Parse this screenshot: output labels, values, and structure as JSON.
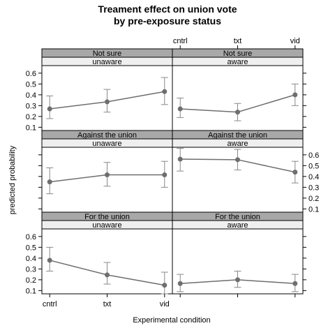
{
  "chart_data": {
    "type": "line",
    "title_line1": "Treament effect on union vote",
    "title_line2": "by pre-exposure status",
    "xlabel": "Experimental condition",
    "ylabel": "predicted probability",
    "categories": [
      "cntrl",
      "txt",
      "vid"
    ],
    "ylim": [
      0.07,
      0.67
    ],
    "yticks": [
      "0.1",
      "0.2",
      "0.3",
      "0.4",
      "0.5",
      "0.6"
    ],
    "grid": false,
    "colors": {
      "line": "#6e6e6e",
      "errorbar": "#888888",
      "strip_dark": "#a8a8a8",
      "strip_light": "#efefef"
    },
    "panels": [
      {
        "vote": "Not sure",
        "status": "unaware",
        "values": [
          0.27,
          0.335,
          0.43
        ],
        "lower": [
          0.18,
          0.24,
          0.31
        ],
        "upper": [
          0.39,
          0.45,
          0.56
        ]
      },
      {
        "vote": "Not sure",
        "status": "aware",
        "values": [
          0.27,
          0.24,
          0.4
        ],
        "lower": [
          0.19,
          0.16,
          0.3
        ],
        "upper": [
          0.37,
          0.32,
          0.5
        ]
      },
      {
        "vote": "Against the union",
        "status": "unaware",
        "values": [
          0.35,
          0.415,
          0.415
        ],
        "lower": [
          0.24,
          0.31,
          0.3
        ],
        "upper": [
          0.48,
          0.53,
          0.54
        ]
      },
      {
        "vote": "Against the union",
        "status": "aware",
        "values": [
          0.56,
          0.555,
          0.44
        ],
        "lower": [
          0.45,
          0.46,
          0.34
        ],
        "upper": [
          0.66,
          0.65,
          0.54
        ]
      },
      {
        "vote": "For the union",
        "status": "unaware",
        "values": [
          0.38,
          0.245,
          0.15
        ],
        "lower": [
          0.28,
          0.16,
          0.07
        ],
        "upper": [
          0.5,
          0.36,
          0.27
        ]
      },
      {
        "vote": "For the union",
        "status": "aware",
        "values": [
          0.165,
          0.2,
          0.165
        ],
        "lower": [
          0.09,
          0.13,
          0.09
        ],
        "upper": [
          0.25,
          0.28,
          0.25
        ]
      }
    ]
  }
}
